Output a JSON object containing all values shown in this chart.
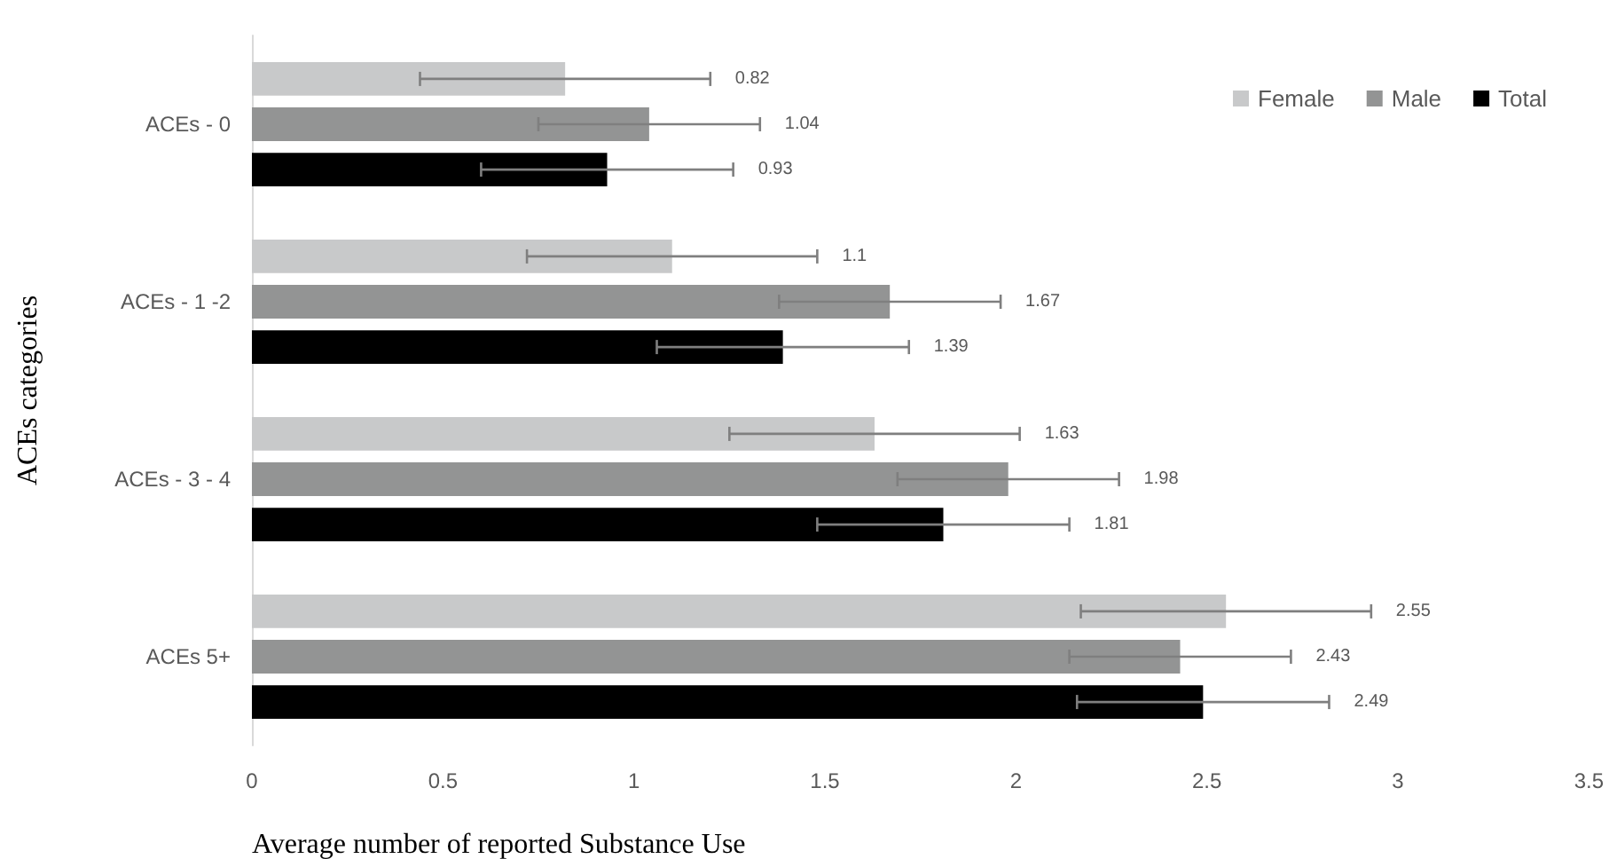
{
  "chart_data": {
    "type": "bar",
    "orientation": "horizontal",
    "xlabel": "Average number of reported Substance Use",
    "ylabel": "ACEs categories",
    "categories": [
      "ACEs - 0",
      "ACEs - 1 -2",
      "ACEs - 3 - 4",
      "ACEs 5+"
    ],
    "series": [
      {
        "name": "Female",
        "color": "#c8c9ca",
        "values": [
          0.82,
          1.1,
          1.63,
          2.55
        ],
        "errors": [
          0.38,
          0.38,
          0.38,
          0.38
        ]
      },
      {
        "name": "Male",
        "color": "#939494",
        "values": [
          1.04,
          1.67,
          1.98,
          2.43
        ],
        "errors": [
          0.29,
          0.29,
          0.29,
          0.29
        ]
      },
      {
        "name": "Total",
        "color": "#000000",
        "values": [
          0.93,
          1.39,
          1.81,
          2.49
        ],
        "errors": [
          0.33,
          0.33,
          0.33,
          0.33
        ]
      }
    ],
    "annotations": [
      "0.82",
      "1.04",
      "0.93",
      "1.1",
      "1.67",
      "1.39",
      "1.63",
      "1.98",
      "1.81",
      "2.55",
      "2.43",
      "2.49"
    ],
    "xlim": [
      0,
      3.5
    ],
    "xticks": [
      0,
      0.5,
      1,
      1.5,
      2,
      2.5,
      3,
      3.5
    ],
    "grid": false,
    "legend": "top right"
  }
}
